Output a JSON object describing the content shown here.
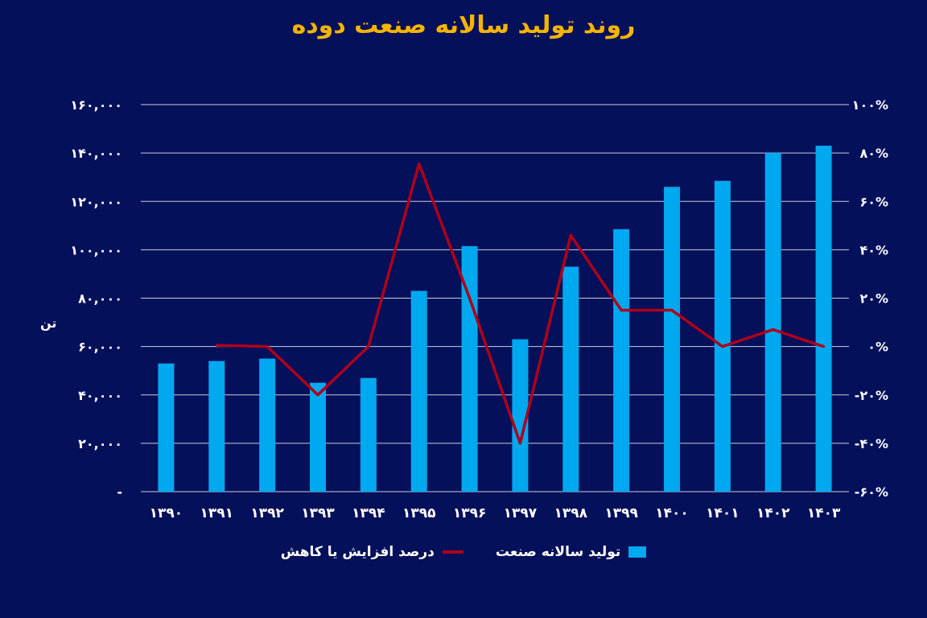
{
  "title": "روند تولید سالانه صنعت دوده",
  "unit_label": "تن",
  "chart_data": {
    "type": "bar+line",
    "categories": [
      "۱۳۹۰",
      "۱۳۹۱",
      "۱۳۹۲",
      "۱۳۹۳",
      "۱۳۹۴",
      "۱۳۹۵",
      "۱۳۹۶",
      "۱۳۹۷",
      "۱۳۹۸",
      "۱۳۹۹",
      "۱۴۰۰",
      "۱۴۰۱",
      "۱۴۰۲",
      "۱۴۰۳"
    ],
    "series": [
      {
        "name": "تولید سالانه صنعت",
        "type": "bar",
        "axis": "left",
        "color": "#00a8f0",
        "values": [
          53000,
          54000,
          55000,
          45000,
          47000,
          83000,
          101500,
          63000,
          93000,
          108500,
          126000,
          128500,
          140000,
          143000
        ]
      },
      {
        "name": "درصد افزایش یا کاهش",
        "type": "line",
        "axis": "right",
        "color": "#b00018",
        "values": [
          null,
          0.5,
          0,
          -20,
          0,
          75.5,
          20,
          -40,
          46,
          15,
          15,
          0,
          7,
          0
        ]
      }
    ],
    "left_axis": {
      "ylim": [
        0,
        160000
      ],
      "tick_labels": [
        "-",
        "۲۰,۰۰۰",
        "۴۰,۰۰۰",
        "۶۰,۰۰۰",
        "۸۰,۰۰۰",
        "۱۰۰,۰۰۰",
        "۱۲۰,۰۰۰",
        "۱۴۰,۰۰۰",
        "۱۶۰,۰۰۰"
      ]
    },
    "right_axis": {
      "ylim": [
        -60,
        100
      ],
      "tick_labels": [
        "-۶۰%",
        "-۴۰%",
        "-۲۰%",
        "۰%",
        "۲۰%",
        "۴۰%",
        "۶۰%",
        "۸۰%",
        "۱۰۰%"
      ]
    },
    "grid": true,
    "legend": "bottom-center"
  }
}
